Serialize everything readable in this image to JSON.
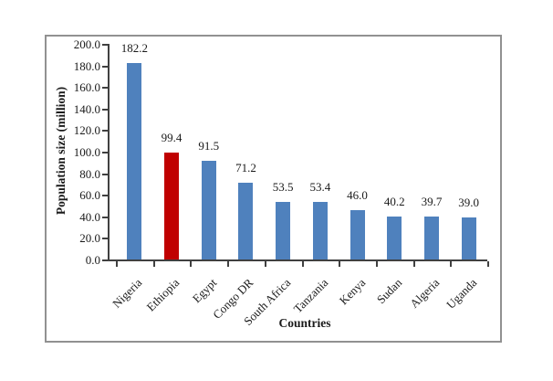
{
  "chart_data": {
    "type": "bar",
    "title": "",
    "categories": [
      "Nigeria",
      "Ethiopia",
      "Egypt",
      "Congo DR",
      "South Africa",
      "Tanzania",
      "Kenya",
      "Sudan",
      "Algeria",
      "Uganda"
    ],
    "values": [
      182.2,
      99.4,
      91.5,
      71.2,
      53.5,
      53.4,
      46.0,
      40.2,
      39.7,
      39.0
    ],
    "data_labels": [
      "182.2",
      "99.4",
      "91.5",
      "71.2",
      "53.5",
      "53.4",
      "46.0",
      "40.2",
      "39.7",
      "39.0"
    ],
    "xlabel": "Countries",
    "ylabel": "Population size (million)",
    "ylim": [
      0,
      200
    ],
    "ytick_step": 20,
    "ytick_labels": [
      "0.0",
      "20.0",
      "40.0",
      "60.0",
      "80.0",
      "100.0",
      "120.0",
      "140.0",
      "160.0",
      "180.0",
      "200.0"
    ],
    "grid": false,
    "legend": "none",
    "highlight_category": "Ethiopia",
    "colors": {
      "bar_default": "#4F81BD",
      "bar_highlight": "#C00000",
      "axis": "#404040",
      "text": "#1a1a1a",
      "frame_border": "#919191"
    }
  }
}
